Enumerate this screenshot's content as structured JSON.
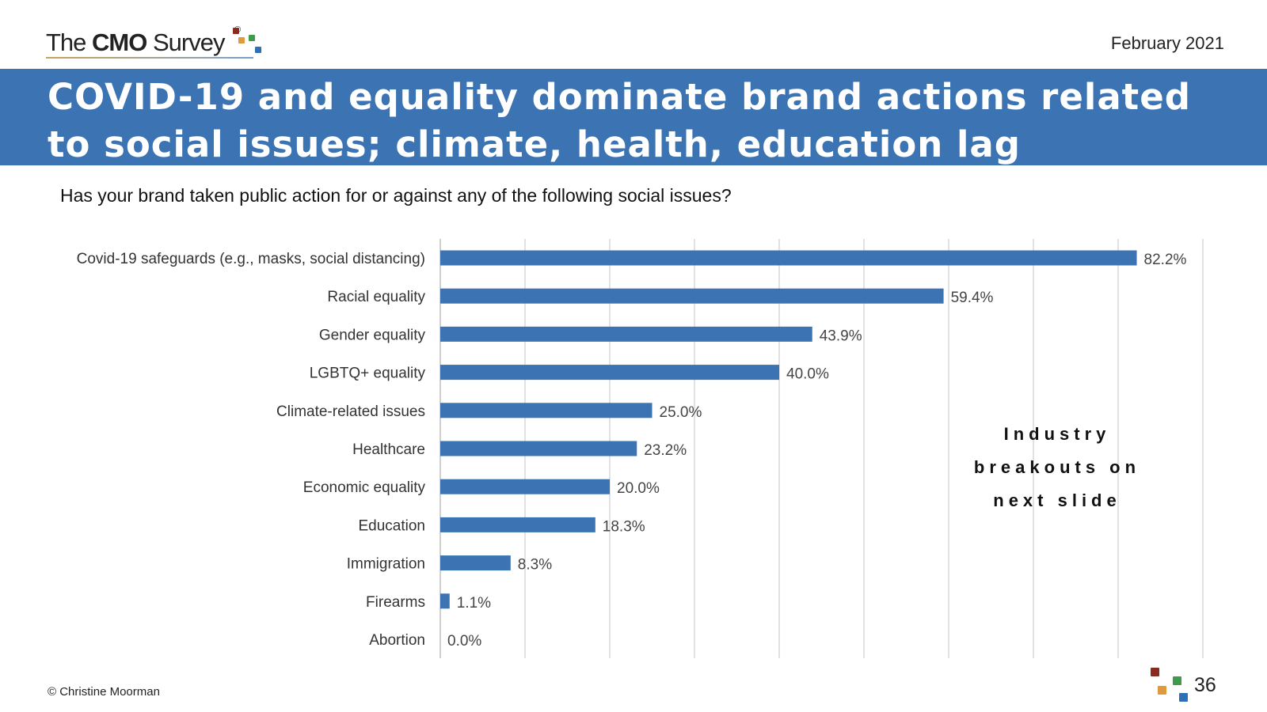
{
  "header": {
    "logo": {
      "prefix": "The ",
      "brand": "CMO",
      "suffix": " Survey",
      "registered": "®"
    },
    "date": "February 2021"
  },
  "banner": {
    "title": "COVID-19 and equality dominate brand actions related to social issues; climate, health, education lag"
  },
  "question": "Has your brand taken public action for or against any of the following social issues?",
  "note": "Industry breakouts on next slide",
  "footer": {
    "copyright": "© Christine Moorman",
    "page": "36"
  },
  "colors": {
    "banner": "#3b73b3",
    "bar": "#3b73b3",
    "grid": "#d9d9d9",
    "logo_red": "#8b2a1e",
    "logo_orange": "#e09a3e",
    "logo_green": "#3f9a4a",
    "logo_blue": "#2f6fb5"
  },
  "chart_data": {
    "type": "bar",
    "orientation": "horizontal",
    "categories": [
      "Covid-19 safeguards (e.g., masks, social distancing)",
      "Racial equality",
      "Gender equality",
      "LGBTQ+ equality",
      "Climate-related issues",
      "Healthcare",
      "Economic equality",
      "Education",
      "Immigration",
      "Firearms",
      "Abortion"
    ],
    "values": [
      82.2,
      59.4,
      43.9,
      40.0,
      25.0,
      23.2,
      20.0,
      18.3,
      8.3,
      1.1,
      0.0
    ],
    "labels": [
      "82.2%",
      "59.4%",
      "43.9%",
      "40.0%",
      "25.0%",
      "23.2%",
      "20.0%",
      "18.3%",
      "8.3%",
      "1.1%",
      "0.0%"
    ],
    "xlim": [
      0,
      90
    ],
    "grid": true,
    "grid_step": 10
  }
}
